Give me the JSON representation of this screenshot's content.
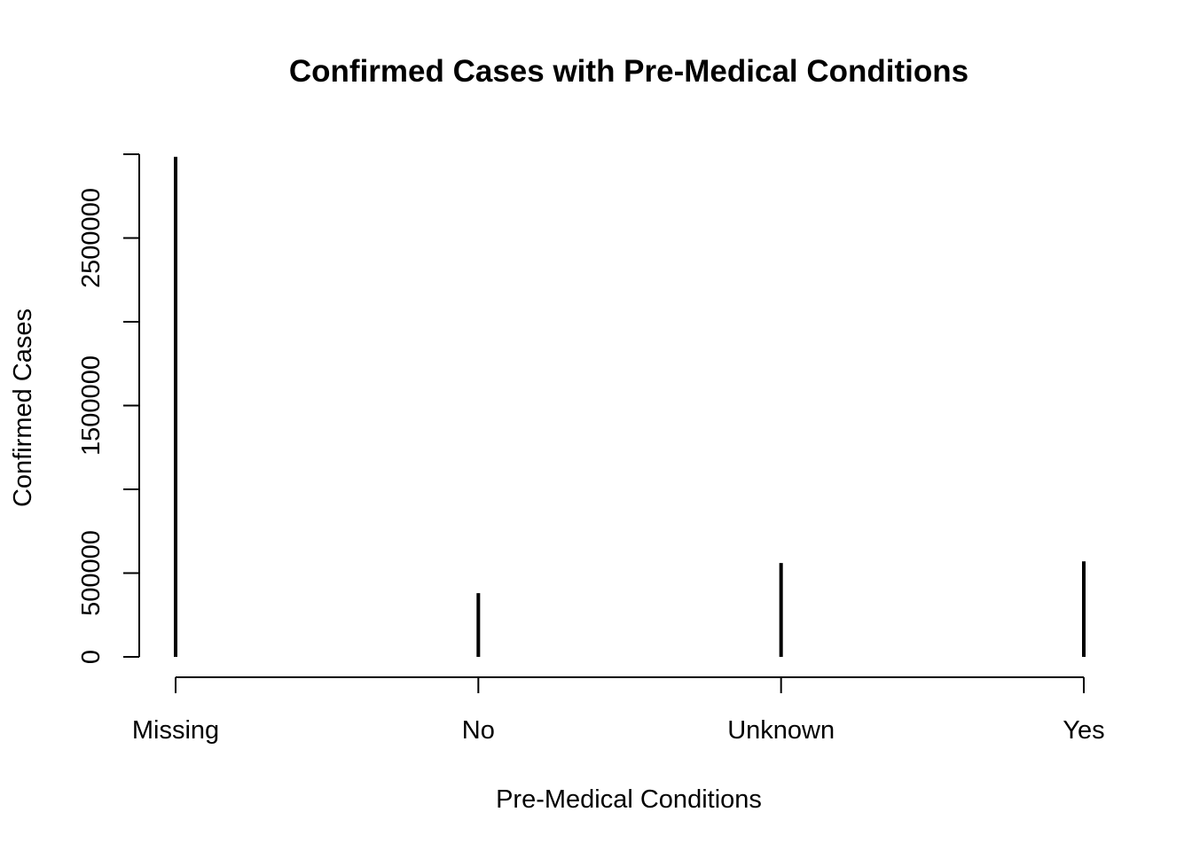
{
  "chart_data": {
    "type": "bar",
    "style": "vertical lines (type='h')",
    "title": "Confirmed Cases with Pre-Medical Conditions",
    "xlabel": "Pre-Medical Conditions",
    "ylabel": "Confirmed Cases",
    "categories": [
      "Missing",
      "No",
      "Unknown",
      "Yes"
    ],
    "values": [
      2985000,
      380000,
      560000,
      570000
    ],
    "ylim": [
      0,
      3000000
    ],
    "y_ticks": [
      0,
      500000,
      1000000,
      1500000,
      2000000,
      2500000,
      3000000
    ],
    "y_tick_labels": [
      "0",
      "500000",
      "",
      "1500000",
      "",
      "2500000",
      ""
    ],
    "grid": false,
    "legend": "none",
    "colors": {
      "bars": "#000000",
      "axes": "#000000",
      "background": "#ffffff"
    }
  }
}
